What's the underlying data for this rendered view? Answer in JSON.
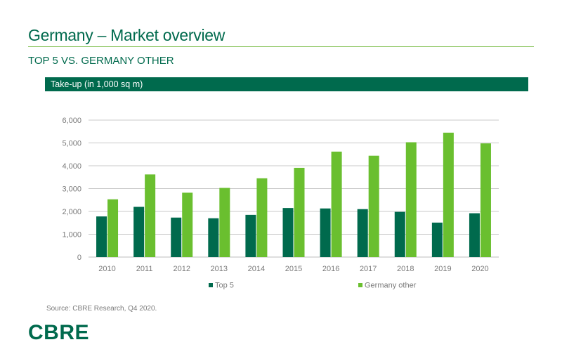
{
  "header": {
    "title": "Germany – Market overview",
    "subtitle": "TOP 5 VS. GERMANY OTHER",
    "band_label": "Take-up (in 1,000 sq m)"
  },
  "footer": {
    "source": "Source: CBRE Research, Q4 2020.",
    "logo_text": "CBRE"
  },
  "colors": {
    "brand_green": "#006a4d",
    "light_green": "#6abf2f"
  },
  "chart_data": {
    "type": "bar",
    "title": "Take-up (in 1,000 sq m)",
    "xlabel": "",
    "ylabel": "",
    "ylim": [
      0,
      6000
    ],
    "yticks": [
      0,
      1000,
      2000,
      3000,
      4000,
      5000,
      6000
    ],
    "ytick_labels": [
      "0",
      "1,000",
      "2,000",
      "3,000",
      "4,000",
      "5,000",
      "6,000"
    ],
    "grid": true,
    "legend_position": "bottom",
    "categories": [
      "2010",
      "2011",
      "2012",
      "2013",
      "2014",
      "2015",
      "2016",
      "2017",
      "2018",
      "2019",
      "2020"
    ],
    "series": [
      {
        "name": "Top 5",
        "color": "#006a4d",
        "values": [
          1780,
          2200,
          1730,
          1700,
          1850,
          2150,
          2130,
          2100,
          1980,
          1510,
          1920
        ]
      },
      {
        "name": "Germany other",
        "color": "#6abf2f",
        "values": [
          2530,
          3620,
          2820,
          3030,
          3450,
          3910,
          4620,
          4440,
          5030,
          5450,
          4980
        ]
      }
    ]
  }
}
